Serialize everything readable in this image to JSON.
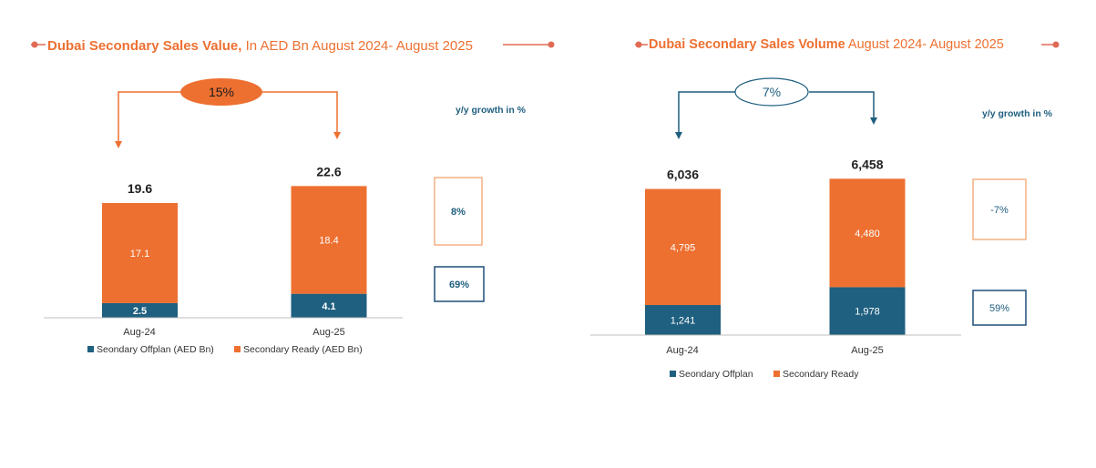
{
  "colors": {
    "ready": "#ED7031",
    "offplan": "#1F5F7F",
    "title_orange": "#ED7031",
    "growth_blue": "#1F5F7F",
    "ready_box_border": "#F4B183",
    "offplan_box_border": "#1F4E79"
  },
  "chart_data": [
    {
      "type": "bar",
      "stacked": true,
      "title_bold": "Dubai Secondary Sales Value,",
      "title_rest": " In AED Bn August 2024- August 2025",
      "categories": [
        "Aug-24",
        "Aug-25"
      ],
      "series": [
        {
          "name": "Seondary Offplan (AED Bn)",
          "values": [
            2.5,
            4.1
          ],
          "labels": [
            "2.5",
            "4.1"
          ]
        },
        {
          "name": "Secondary Ready (AED Bn)",
          "values": [
            17.1,
            18.4
          ],
          "labels": [
            "17.1",
            "18.4"
          ]
        }
      ],
      "totals": [
        "19.6",
        "22.6"
      ],
      "growth_header": "y/y growth in %",
      "growth": {
        "ready": "8%",
        "offplan": "69%"
      },
      "overall_change": "15%",
      "ylim": [
        0,
        28
      ],
      "legend_position": "bottom"
    },
    {
      "type": "bar",
      "stacked": true,
      "title_bold": "Dubai Secondary Sales Volume",
      "title_rest": " August 2024- August 2025",
      "categories": [
        "Aug-24",
        "Aug-25"
      ],
      "series": [
        {
          "name": "Seondary Offplan",
          "values": [
            1241,
            1978
          ],
          "labels": [
            "1,241",
            "1,978"
          ]
        },
        {
          "name": "Secondary Ready",
          "values": [
            4795,
            4480
          ],
          "labels": [
            "4,795",
            "4,480"
          ]
        }
      ],
      "totals": [
        "6,036",
        "6,458"
      ],
      "growth_header": "y/y growth in %",
      "growth": {
        "ready": "-7%",
        "offplan": "59%"
      },
      "overall_change": "7%",
      "ylim": [
        0,
        8050
      ],
      "legend_position": "bottom"
    }
  ]
}
